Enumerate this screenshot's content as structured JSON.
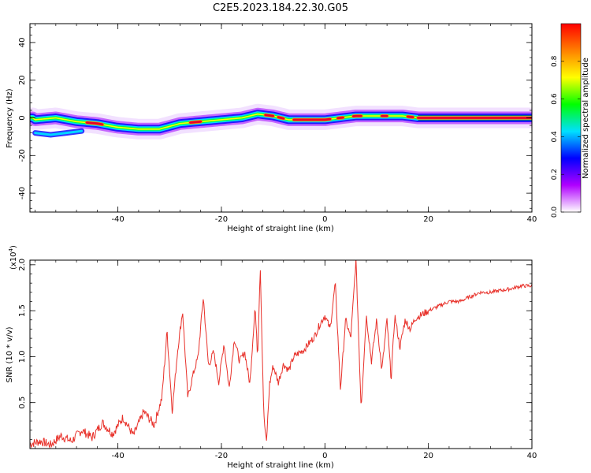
{
  "title": "C2E5.2023.184.22.30.G05",
  "chart_data": [
    {
      "type": "heatmap",
      "xlabel": "Height of straight line (km)",
      "ylabel": "Frequency (Hz)",
      "xlim": [
        -57,
        40
      ],
      "ylim": [
        -50,
        50
      ],
      "x_ticks": [
        "-40",
        "-20",
        "0",
        "20",
        "40"
      ],
      "y_ticks": [
        "40",
        "20",
        "0",
        "-20",
        "-40"
      ],
      "colorbar": {
        "label": "Normalized spectral amplitude",
        "range": [
          0,
          1
        ],
        "ticks": [
          "0.0",
          "0.2",
          "0.4",
          "0.6",
          "0.8"
        ],
        "colors": [
          "#ffffff",
          "#b000ff",
          "#0000ff",
          "#00e0ff",
          "#00ff00",
          "#ffff00",
          "#ff8000",
          "#ff0000"
        ]
      },
      "ridge": {
        "x": [
          -56,
          -52,
          -48,
          -44,
          -40,
          -36,
          -32,
          -28,
          -24,
          -20,
          -16,
          -13,
          -10,
          -7,
          -4,
          0,
          3,
          6,
          9,
          12,
          15,
          18,
          40
        ],
        "y": [
          -1,
          0,
          -2,
          -3,
          -5,
          -6,
          -6,
          -3,
          -2,
          -1,
          0,
          2,
          1,
          -1,
          -1,
          -1,
          0,
          1,
          1,
          1,
          1,
          0,
          0
        ]
      }
    },
    {
      "type": "line",
      "xlabel": "Height of straight line (km)",
      "ylabel": "SNR (10 * v/v)",
      "exponent_label": "(x10",
      "exponent_power": "4",
      "exponent_close": ")",
      "xlim": [
        -57,
        40
      ],
      "ylim": [
        0,
        2.05
      ],
      "x_ticks": [
        "-40",
        "-20",
        "0",
        "20",
        "40"
      ],
      "y_ticks": [
        "2.0",
        "1.5",
        "1.0",
        "0.5"
      ],
      "color": "#e8312a",
      "series_points": [
        [
          -57,
          0.05
        ],
        [
          -55,
          0.08
        ],
        [
          -53,
          0.04
        ],
        [
          -51,
          0.14
        ],
        [
          -49,
          0.08
        ],
        [
          -47,
          0.2
        ],
        [
          -45,
          0.12
        ],
        [
          -43,
          0.28
        ],
        [
          -41,
          0.16
        ],
        [
          -39,
          0.34
        ],
        [
          -37,
          0.14
        ],
        [
          -35,
          0.4
        ],
        [
          -33,
          0.26
        ],
        [
          -31.5,
          0.55
        ],
        [
          -30.5,
          1.28
        ],
        [
          -29.5,
          0.4
        ],
        [
          -28.5,
          1.05
        ],
        [
          -27.5,
          1.5
        ],
        [
          -26.5,
          0.55
        ],
        [
          -25.5,
          0.8
        ],
        [
          -24.5,
          1.0
        ],
        [
          -23.5,
          1.65
        ],
        [
          -22.5,
          0.9
        ],
        [
          -21.5,
          1.05
        ],
        [
          -20.5,
          0.72
        ],
        [
          -19.5,
          1.15
        ],
        [
          -18.5,
          0.65
        ],
        [
          -17.5,
          1.2
        ],
        [
          -16.5,
          0.95
        ],
        [
          -15.5,
          1.05
        ],
        [
          -14.5,
          0.7
        ],
        [
          -13.5,
          1.55
        ],
        [
          -13,
          1.0
        ],
        [
          -12.5,
          2.0
        ],
        [
          -11.8,
          0.35
        ],
        [
          -11.3,
          0.05
        ],
        [
          -10.7,
          0.7
        ],
        [
          -10,
          0.9
        ],
        [
          -9,
          0.72
        ],
        [
          -8,
          0.92
        ],
        [
          -7,
          0.85
        ],
        [
          -6,
          1.0
        ],
        [
          -4,
          1.08
        ],
        [
          -3,
          1.15
        ],
        [
          -2,
          1.22
        ],
        [
          -1,
          1.35
        ],
        [
          0,
          1.45
        ],
        [
          1,
          1.3
        ],
        [
          2,
          1.8
        ],
        [
          3,
          0.65
        ],
        [
          4,
          1.4
        ],
        [
          5,
          1.2
        ],
        [
          6,
          2.05
        ],
        [
          7,
          0.45
        ],
        [
          8,
          1.45
        ],
        [
          9,
          0.95
        ],
        [
          10,
          1.4
        ],
        [
          11,
          0.85
        ],
        [
          12,
          1.4
        ],
        [
          12.8,
          0.75
        ],
        [
          13.5,
          1.45
        ],
        [
          14.5,
          1.1
        ],
        [
          15.5,
          1.4
        ],
        [
          16.5,
          1.3
        ],
        [
          17.5,
          1.42
        ],
        [
          18.5,
          1.45
        ],
        [
          20,
          1.5
        ],
        [
          22,
          1.55
        ],
        [
          24,
          1.6
        ],
        [
          26,
          1.6
        ],
        [
          28,
          1.65
        ],
        [
          30,
          1.7
        ],
        [
          32,
          1.7
        ],
        [
          34,
          1.72
        ],
        [
          36,
          1.74
        ],
        [
          38,
          1.77
        ],
        [
          40,
          1.77
        ]
      ]
    }
  ]
}
